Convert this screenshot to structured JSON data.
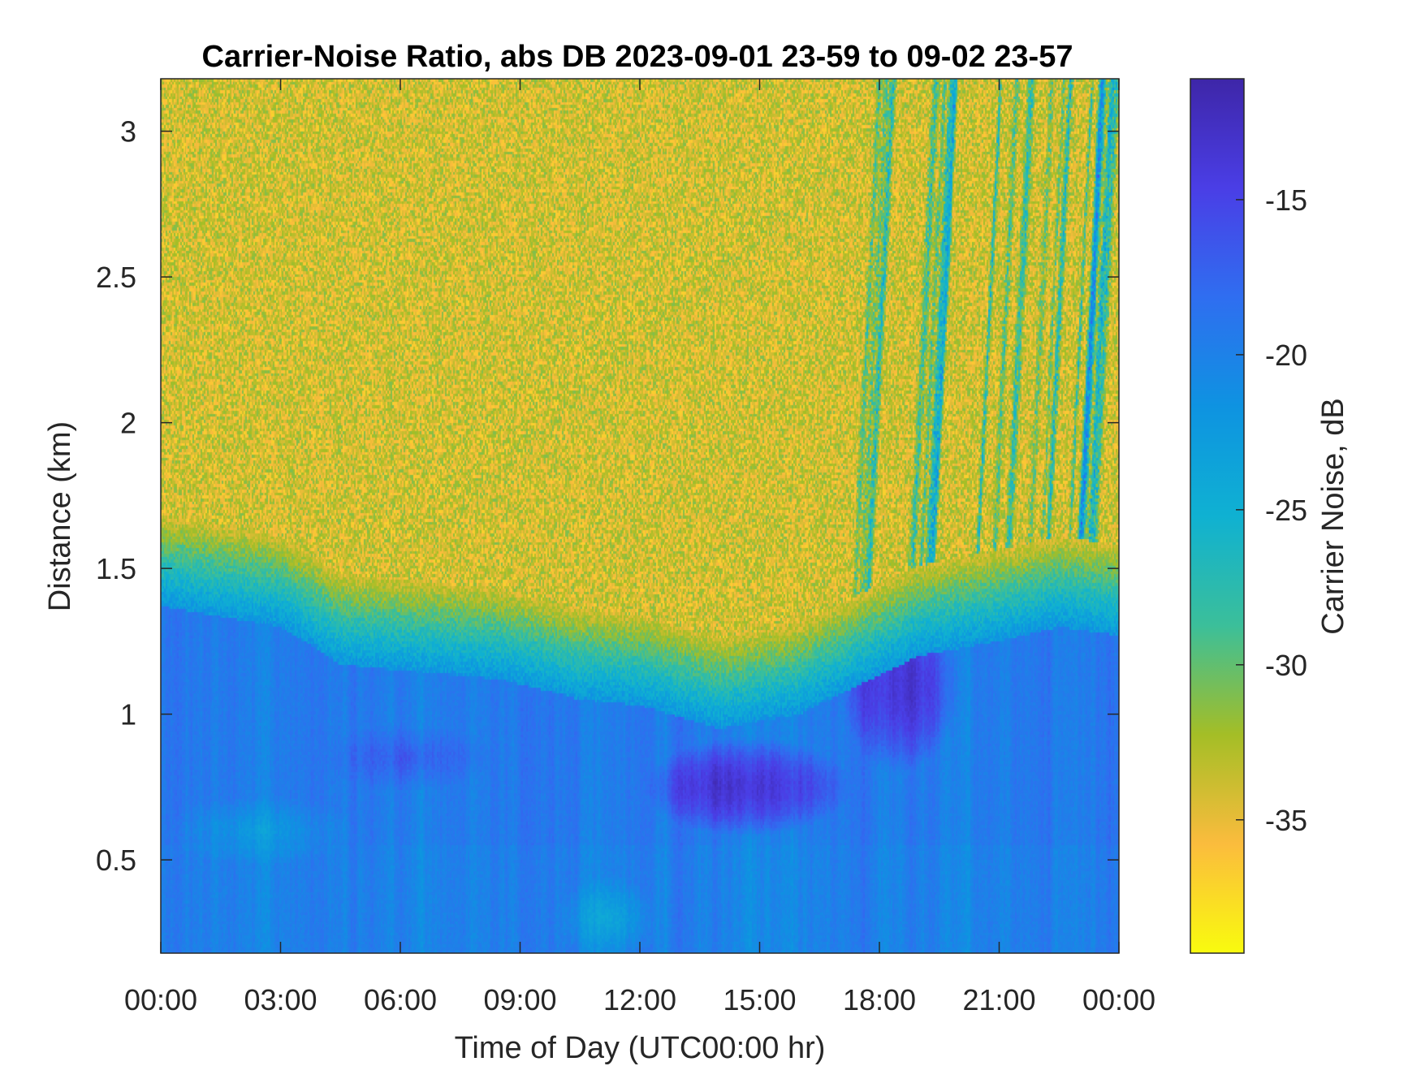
{
  "chart_data": {
    "type": "heatmap",
    "title": "Carrier-Noise Ratio, abs DB 2023-09-01 23-59 to 09-02 23-57",
    "xlabel": "Time of Day (UTC00:00 hr)",
    "ylabel": "Distance (km)",
    "x_ticks": [
      "00:00",
      "03:00",
      "06:00",
      "09:00",
      "12:00",
      "15:00",
      "18:00",
      "21:00",
      "00:00"
    ],
    "xlim_hours": [
      0,
      24
    ],
    "y_ticks": [
      "0.5",
      "1",
      "1.5",
      "2",
      "2.5",
      "3"
    ],
    "ylim": [
      0.18,
      3.18
    ],
    "colorbar": {
      "label": "Carrier Noise, dB",
      "ticks": [
        "-15",
        "-20",
        "-25",
        "-30",
        "-35"
      ],
      "clim": [
        -39.3,
        -11.1
      ],
      "colormap": "parula (reversed)"
    },
    "features": {
      "noise_floor_db": -34,
      "boundary_layer_top_km": [
        [
          0,
          1.62
        ],
        [
          3,
          1.55
        ],
        [
          4.5,
          1.42
        ],
        [
          6,
          1.4
        ],
        [
          8.5,
          1.37
        ],
        [
          10.5,
          1.3
        ],
        [
          12,
          1.28
        ],
        [
          14,
          1.2
        ],
        [
          16,
          1.25
        ],
        [
          17.5,
          1.35
        ],
        [
          19,
          1.45
        ],
        [
          21,
          1.5
        ],
        [
          22.5,
          1.55
        ],
        [
          24,
          1.52
        ]
      ],
      "strong_layer": {
        "center_time_hours": 14.7,
        "center_km": 0.75,
        "min_db": -12.5
      },
      "evening_layer": {
        "center_time_hours": 18.5,
        "center_km": 1.1,
        "min_db": -12.8
      }
    }
  },
  "colors": {
    "axis": "#262626",
    "colormap_stops": [
      "#f9fb0e",
      "#fbbc3d",
      "#a4be26",
      "#3bbf9a",
      "#0fb1d2",
      "#0e93e1",
      "#2f6ef0",
      "#4a3ee6",
      "#3e26a8"
    ]
  }
}
